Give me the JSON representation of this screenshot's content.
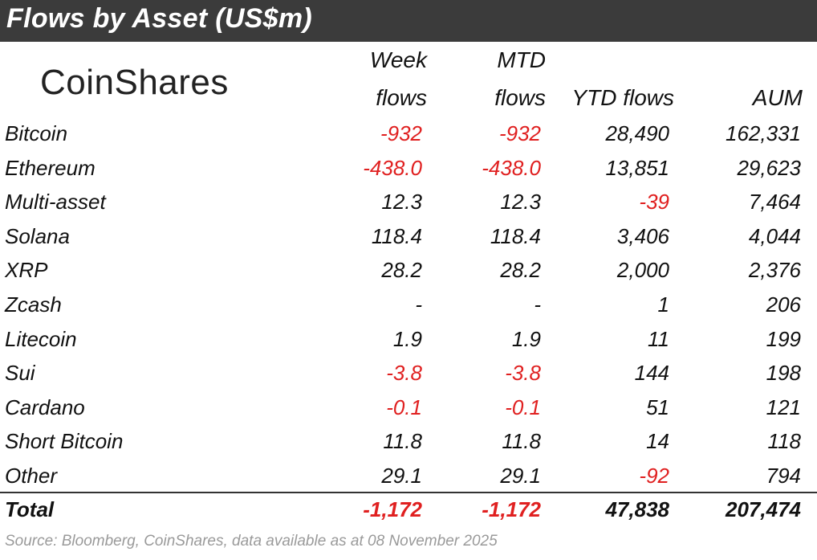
{
  "title": "Flows by Asset (US$m)",
  "logo_text": "CoinShares",
  "columns": {
    "week": [
      "Week",
      "flows"
    ],
    "mtd": [
      "MTD",
      "flows"
    ],
    "ytd": "YTD flows",
    "aum": "AUM"
  },
  "rows": [
    {
      "asset": "Bitcoin",
      "week": "-932",
      "mtd": "-932",
      "ytd": "28,490",
      "aum": "162,331"
    },
    {
      "asset": "Ethereum",
      "week": "-438.0",
      "mtd": "-438.0",
      "ytd": "13,851",
      "aum": "29,623"
    },
    {
      "asset": "Multi-asset",
      "week": "12.3",
      "mtd": "12.3",
      "ytd": "-39",
      "aum": "7,464"
    },
    {
      "asset": "Solana",
      "week": "118.4",
      "mtd": "118.4",
      "ytd": "3,406",
      "aum": "4,044"
    },
    {
      "asset": "XRP",
      "week": "28.2",
      "mtd": "28.2",
      "ytd": "2,000",
      "aum": "2,376"
    },
    {
      "asset": "Zcash",
      "week": "-",
      "mtd": "-",
      "ytd": "1",
      "aum": "206"
    },
    {
      "asset": "Litecoin",
      "week": "1.9",
      "mtd": "1.9",
      "ytd": "11",
      "aum": "199"
    },
    {
      "asset": "Sui",
      "week": "-3.8",
      "mtd": "-3.8",
      "ytd": "144",
      "aum": "198"
    },
    {
      "asset": "Cardano",
      "week": "-0.1",
      "mtd": "-0.1",
      "ytd": "51",
      "aum": "121"
    },
    {
      "asset": "Short Bitcoin",
      "week": "11.8",
      "mtd": "11.8",
      "ytd": "14",
      "aum": "118"
    },
    {
      "asset": "Other",
      "week": "29.1",
      "mtd": "29.1",
      "ytd": "-92",
      "aum": "794"
    }
  ],
  "total": {
    "asset": "Total",
    "week": "-1,172",
    "mtd": "-1,172",
    "ytd": "47,838",
    "aum": "207,474"
  },
  "source": "Source: Bloomberg, CoinShares, data available as at 08 November 2025",
  "colors": {
    "banner": "#3b3b3b",
    "negative": "#e02020",
    "source_text": "#9a9a9a"
  }
}
